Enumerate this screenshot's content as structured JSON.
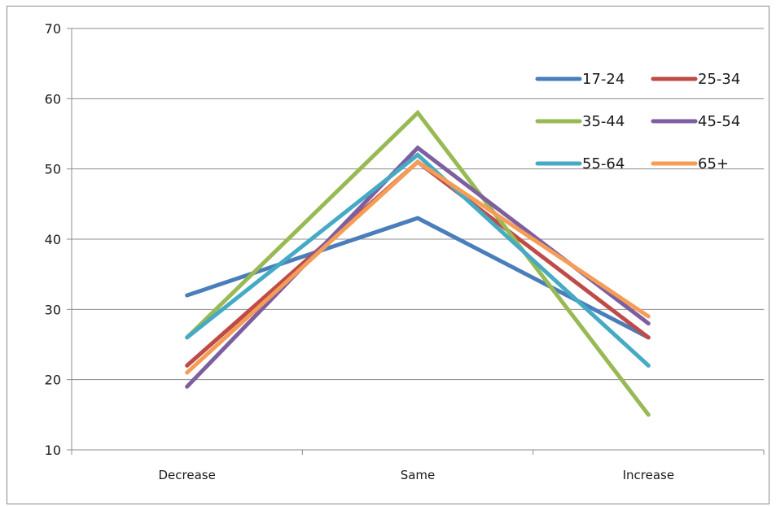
{
  "chart_data": {
    "type": "line",
    "categories": [
      "Decrease",
      "Same",
      "Increase"
    ],
    "ylim": [
      10,
      70
    ],
    "yticks": [
      10,
      20,
      30,
      40,
      50,
      60,
      70
    ],
    "grid": true,
    "legend_position": "top-right",
    "series": [
      {
        "name": "17-24",
        "color": "#4a7ebb",
        "values": [
          32,
          43,
          26
        ]
      },
      {
        "name": "25-34",
        "color": "#be4b48",
        "values": [
          22,
          51,
          26
        ]
      },
      {
        "name": "35-44",
        "color": "#98b954",
        "values": [
          26,
          58,
          15
        ]
      },
      {
        "name": "45-54",
        "color": "#7d5fa0",
        "values": [
          19,
          53,
          28
        ]
      },
      {
        "name": "55-64",
        "color": "#46aac5",
        "values": [
          26,
          52,
          22
        ]
      },
      {
        "name": "65+",
        "color": "#f59d56",
        "values": [
          21,
          51,
          29
        ]
      }
    ]
  }
}
